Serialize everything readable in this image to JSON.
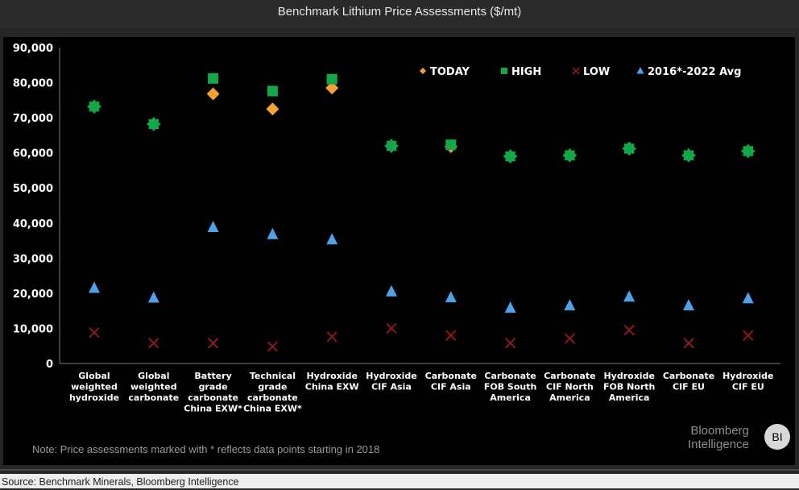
{
  "header": {
    "title": "Benchmark Lithium Price Assessments ($/mt)"
  },
  "note": "Note: Price assessments marked with * reflects data points starting in 2018",
  "brand": {
    "line1": "Bloomberg",
    "line2": "Intelligence",
    "logo": "BI"
  },
  "source": "Source: Benchmark Minerals, Bloomberg Intelligence",
  "colors": {
    "today": "#f5a233",
    "high": "#12a84a",
    "low": "#8b1a1a",
    "avg": "#4ea3e8",
    "axis_text": "#ffffff",
    "background": "#000000"
  },
  "chart_data": {
    "type": "scatter",
    "categories": [
      "Global weighted hydroxide",
      "Global weighted carbonate",
      "Battery grade carbonate China EXW*",
      "Technical grade carbonate China EXW*",
      "Hydroxide China EXW",
      "Hydroxide CIF Asia",
      "Carbonate CIF Asia",
      "Carbonate FOB South America",
      "Carbonate CIF North America",
      "Hydroxide FOB North America",
      "Carbonate CIF EU",
      "Hydroxide CIF EU"
    ],
    "category_lines": [
      [
        "Global",
        "weighted",
        "hydroxide"
      ],
      [
        "Global",
        "weighted",
        "carbonate"
      ],
      [
        "Battery",
        "grade",
        "carbonate",
        "China EXW*"
      ],
      [
        "Technical",
        "grade",
        "carbonate",
        "China EXW*"
      ],
      [
        "Hydroxide",
        "China EXW"
      ],
      [
        "Hydroxide",
        "CIF Asia"
      ],
      [
        "Carbonate",
        "CIF Asia"
      ],
      [
        "Carbonate",
        "FOB South",
        "America"
      ],
      [
        "Carbonate",
        "CIF North",
        "America"
      ],
      [
        "Hydroxide",
        "FOB North",
        "America"
      ],
      [
        "Carbonate",
        "CIF EU"
      ],
      [
        "Hydroxide",
        "CIF EU"
      ]
    ],
    "series": [
      {
        "name": "TODAY",
        "marker": "diamond",
        "values": [
          73200,
          68200,
          76800,
          72500,
          78500,
          62000,
          61800,
          59000,
          59300,
          61200,
          59300,
          60500
        ]
      },
      {
        "name": "HIGH",
        "marker": "square",
        "values": [
          73200,
          68200,
          81200,
          77600,
          81000,
          62000,
          62300,
          59000,
          59300,
          61200,
          59300,
          60500
        ]
      },
      {
        "name": "LOW",
        "marker": "x",
        "values": [
          8800,
          5800,
          5800,
          4800,
          7600,
          10000,
          8000,
          5800,
          7100,
          9500,
          5800,
          8000
        ]
      },
      {
        "name": "2016*-2022 Avg",
        "marker": "triangle",
        "values": [
          21500,
          18700,
          38800,
          36800,
          35300,
          20500,
          18800,
          15800,
          16500,
          19000,
          16500,
          18500
        ]
      }
    ],
    "ylim": [
      0,
      90000
    ],
    "yticks": [
      "0",
      "10,000",
      "20,000",
      "30,000",
      "40,000",
      "50,000",
      "60,000",
      "70,000",
      "80,000",
      "90,000"
    ],
    "ytick_values": [
      0,
      10000,
      20000,
      30000,
      40000,
      50000,
      60000,
      70000,
      80000,
      90000
    ],
    "legend_position": "top-right",
    "grid": false
  }
}
